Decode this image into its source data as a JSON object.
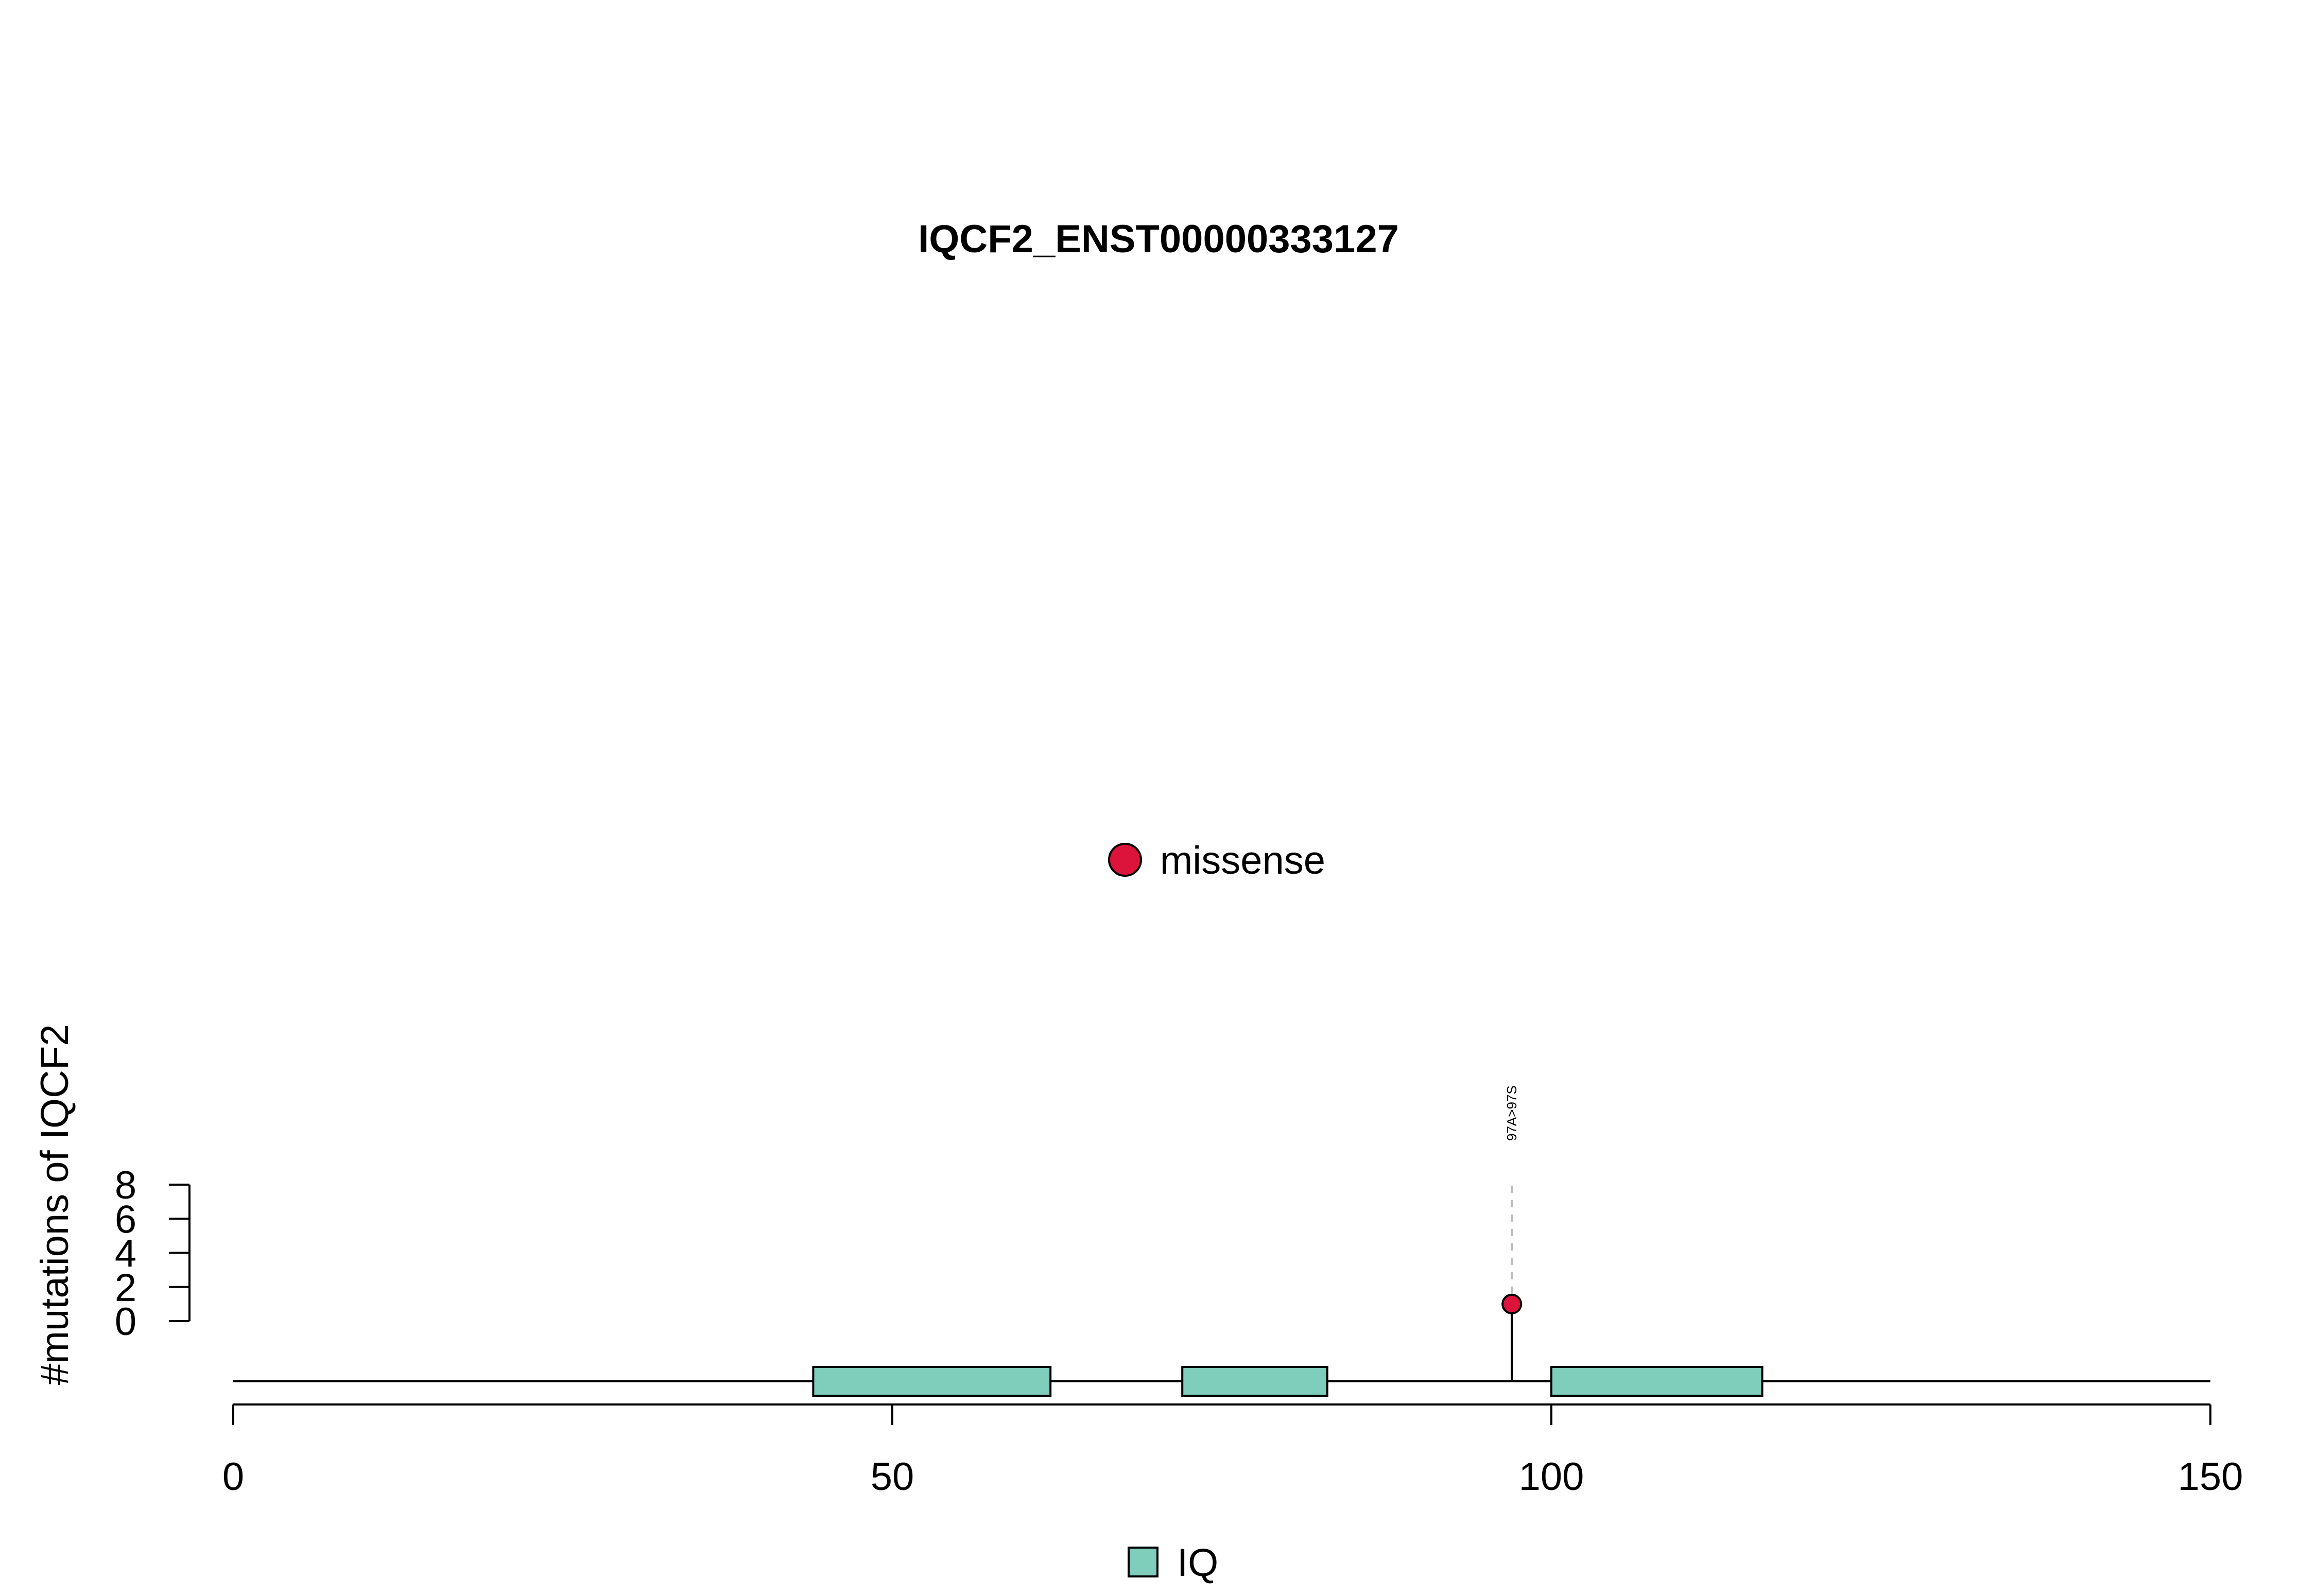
{
  "chart_data": {
    "type": "lollipop",
    "title": "IQCF2_ENST00000333127",
    "ylabel": "#mutations of IQCF2",
    "xlabel": "",
    "xlim": [
      0,
      150
    ],
    "x_ticks": [
      0,
      50,
      100,
      150
    ],
    "ylim": [
      0,
      8
    ],
    "y_ticks": [
      0,
      2,
      4,
      6,
      8
    ],
    "protein_length": 150,
    "domains": [
      {
        "name": "IQ",
        "start": 44,
        "end": 62
      },
      {
        "name": "IQ",
        "start": 72,
        "end": 83
      },
      {
        "name": "IQ",
        "start": 100,
        "end": 116
      }
    ],
    "mutations": [
      {
        "position": 97,
        "count": 1,
        "label": "97A>97S",
        "type": "missense"
      }
    ],
    "legend_top": [
      {
        "label": "missense",
        "color": "#dc143c"
      }
    ],
    "legend_bottom": [
      {
        "label": "IQ",
        "color": "#7fcdbb"
      }
    ],
    "colors": {
      "missense": "#dc143c",
      "domain": "#7fcdbb"
    }
  }
}
